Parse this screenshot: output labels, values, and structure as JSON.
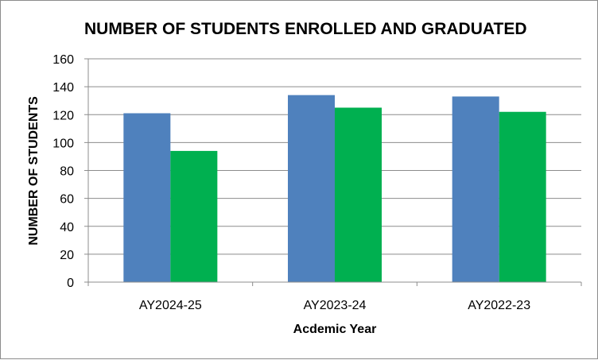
{
  "chart_data": {
    "type": "bar",
    "title": "NUMBER OF STUDENTS ENROLLED AND GRADUATED",
    "xlabel": "Acdemic Year",
    "ylabel": "NUMBER OF STUDENTS",
    "categories": [
      "AY2024-25",
      "AY2023-24",
      "AY2022-23"
    ],
    "series": [
      {
        "values": [
          121,
          134,
          133
        ],
        "color": "#4f81bd"
      },
      {
        "values": [
          94,
          125,
          122
        ],
        "color": "#00b050"
      }
    ],
    "ylim": [
      0,
      160
    ],
    "yticks": [
      0,
      20,
      40,
      60,
      80,
      100,
      120,
      140,
      160
    ],
    "grid": true,
    "legend": "none"
  }
}
